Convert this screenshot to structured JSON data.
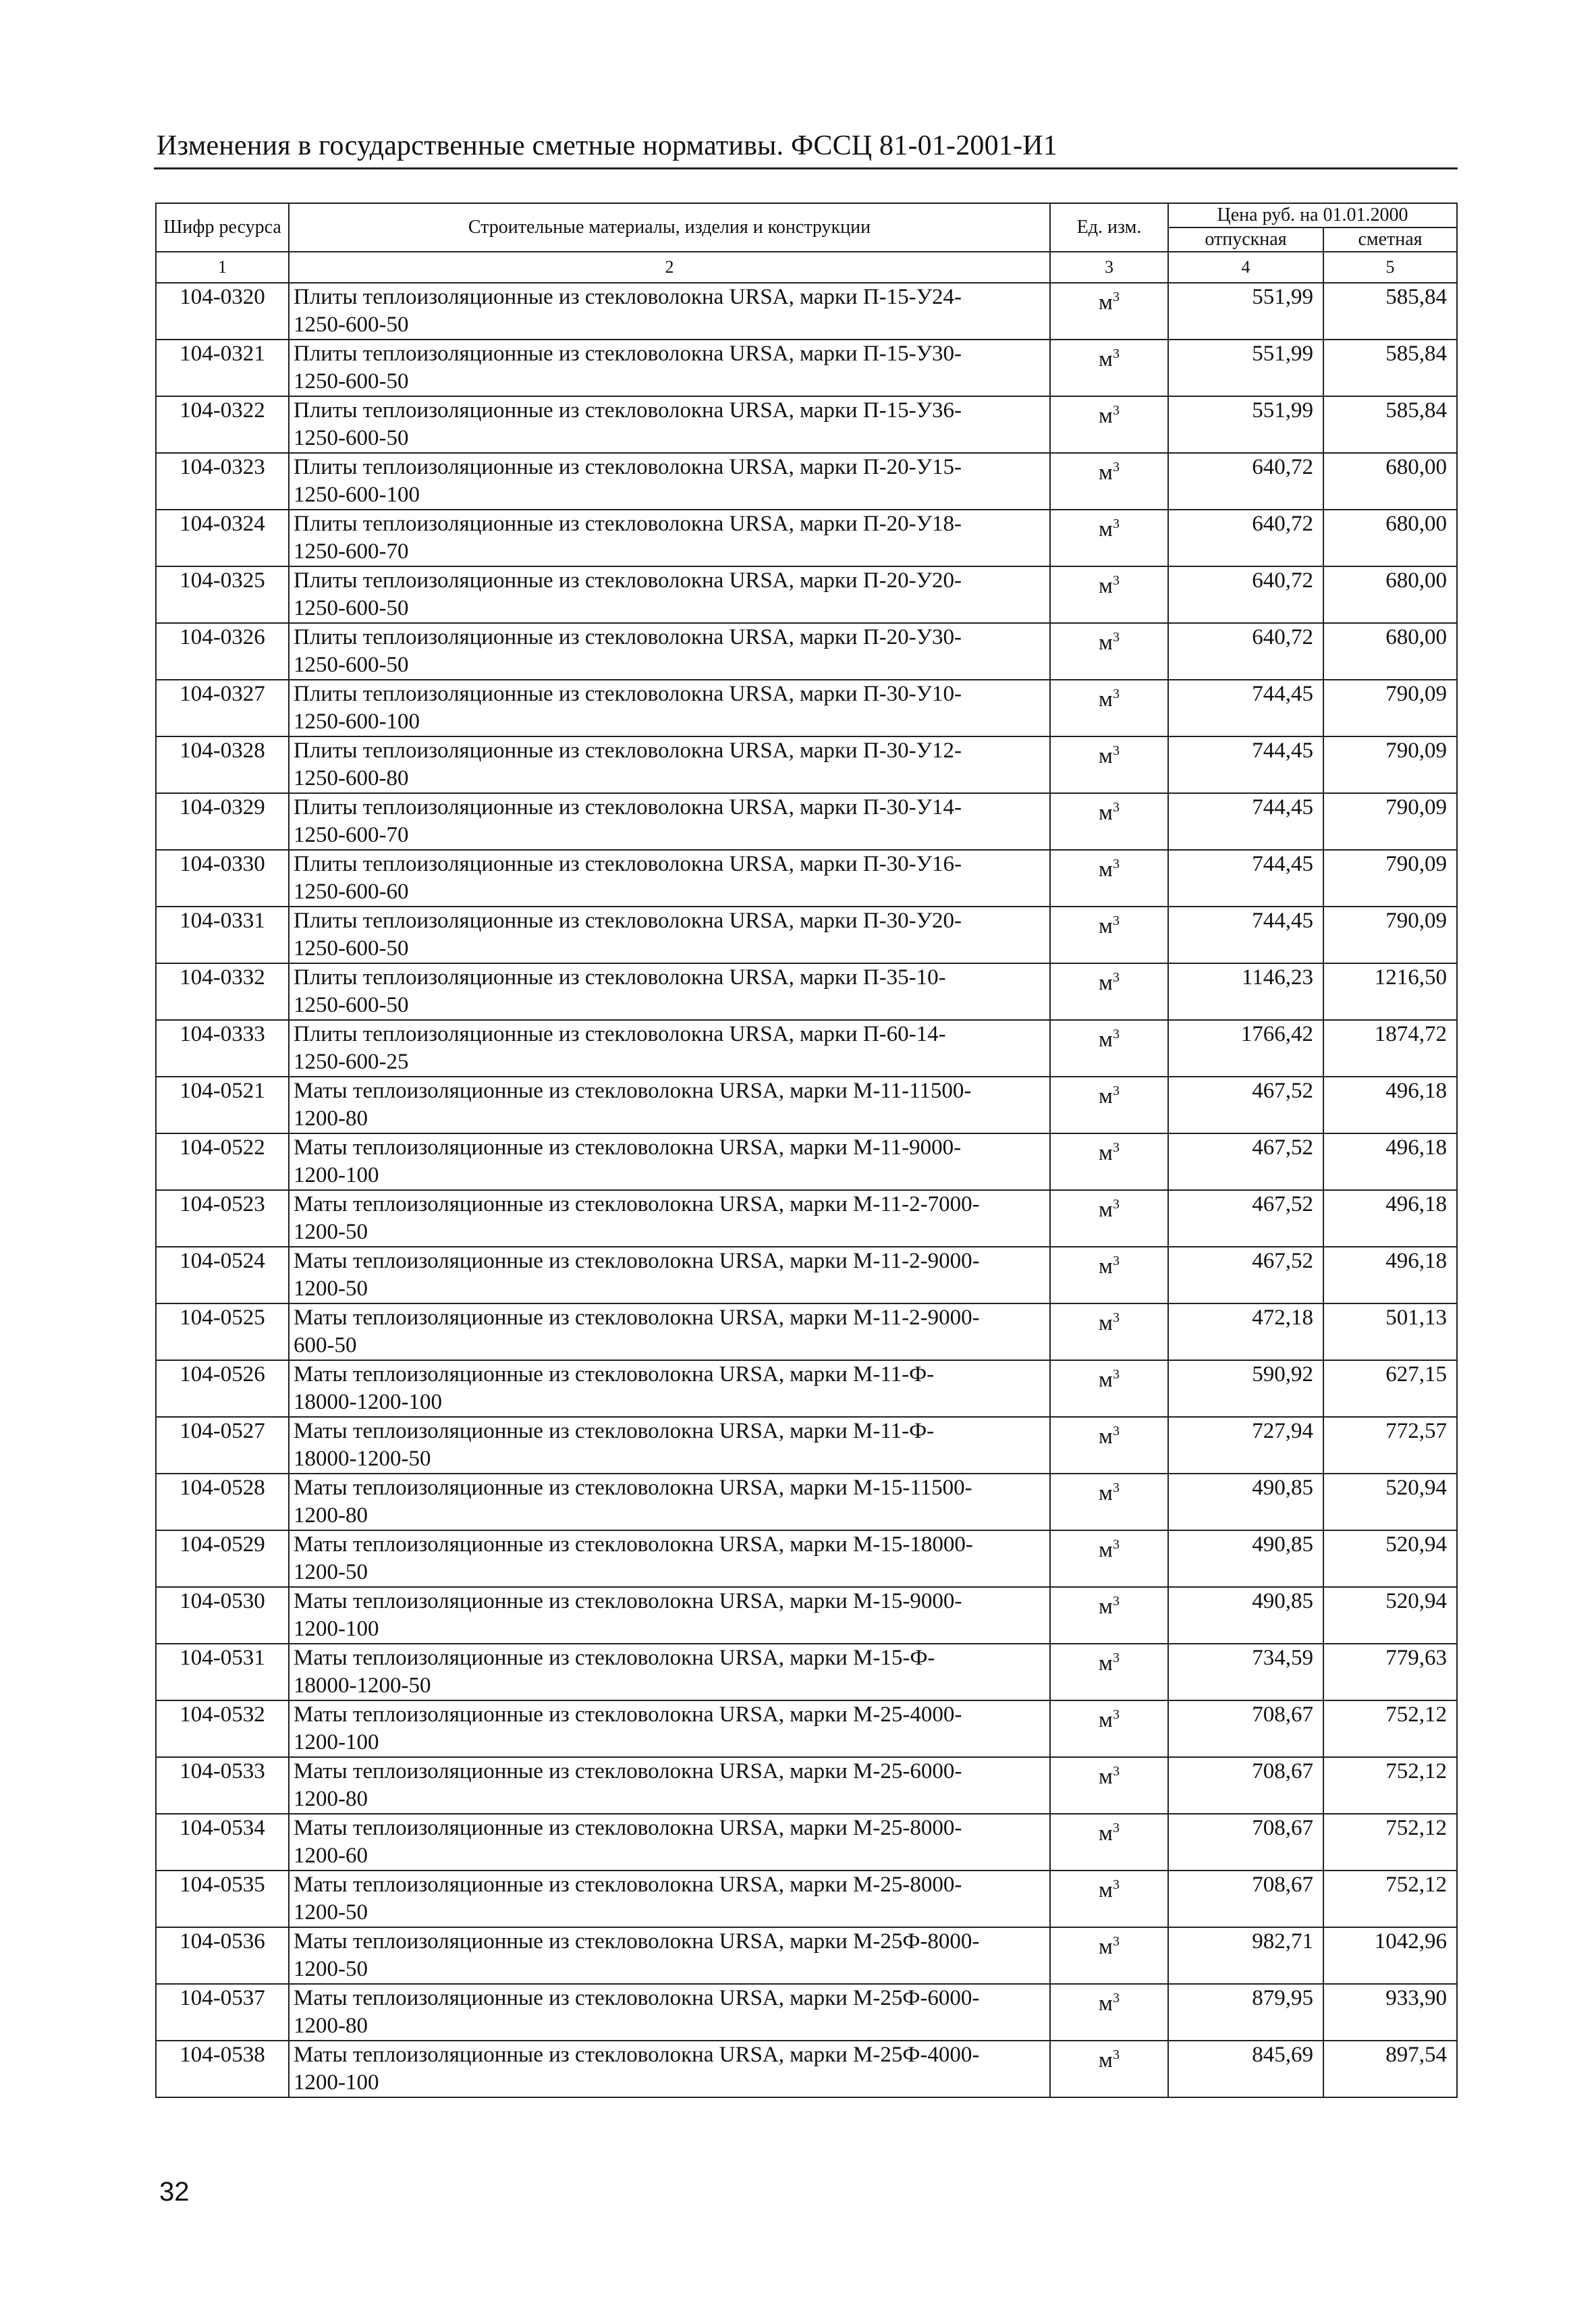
{
  "header": {
    "title": "Изменения в государственные сметные нормативы. ФССЦ 81-01-2001-И1"
  },
  "table": {
    "columns": {
      "code": "Шифр ресурса",
      "name": "Строительные материалы, изделия и конструкции",
      "unit": "Ед. изм.",
      "price_group": "Цена руб. на 01.01.2000",
      "price_release": "отпускная",
      "price_estimate": "сметная"
    },
    "column_numbers": [
      "1",
      "2",
      "3",
      "4",
      "5"
    ],
    "unit_base": "м",
    "unit_exp": "3",
    "rows": [
      {
        "code": "104-0320",
        "name": "Плиты теплоизоляционные из стекловолокна URSA, марки П-15-У24-\n1250-600-50",
        "release": "551,99",
        "estimate": "585,84"
      },
      {
        "code": "104-0321",
        "name": "Плиты теплоизоляционные из стекловолокна URSA, марки П-15-У30-\n1250-600-50",
        "release": "551,99",
        "estimate": "585,84"
      },
      {
        "code": "104-0322",
        "name": "Плиты теплоизоляционные из стекловолокна URSA, марки П-15-У36-\n1250-600-50",
        "release": "551,99",
        "estimate": "585,84"
      },
      {
        "code": "104-0323",
        "name": "Плиты теплоизоляционные из стекловолокна URSA, марки П-20-У15-\n1250-600-100",
        "release": "640,72",
        "estimate": "680,00"
      },
      {
        "code": "104-0324",
        "name": "Плиты теплоизоляционные из стекловолокна URSA, марки П-20-У18-\n1250-600-70",
        "release": "640,72",
        "estimate": "680,00"
      },
      {
        "code": "104-0325",
        "name": "Плиты теплоизоляционные из стекловолокна URSA, марки П-20-У20-\n1250-600-50",
        "release": "640,72",
        "estimate": "680,00"
      },
      {
        "code": "104-0326",
        "name": "Плиты теплоизоляционные из стекловолокна URSA, марки П-20-У30-\n1250-600-50",
        "release": "640,72",
        "estimate": "680,00"
      },
      {
        "code": "104-0327",
        "name": "Плиты теплоизоляционные из стекловолокна URSA, марки П-30-У10-\n1250-600-100",
        "release": "744,45",
        "estimate": "790,09"
      },
      {
        "code": "104-0328",
        "name": "Плиты теплоизоляционные из стекловолокна URSA, марки П-30-У12-\n1250-600-80",
        "release": "744,45",
        "estimate": "790,09"
      },
      {
        "code": "104-0329",
        "name": "Плиты теплоизоляционные из стекловолокна URSA, марки П-30-У14-\n1250-600-70",
        "release": "744,45",
        "estimate": "790,09"
      },
      {
        "code": "104-0330",
        "name": "Плиты теплоизоляционные из стекловолокна URSA, марки П-30-У16-\n1250-600-60",
        "release": "744,45",
        "estimate": "790,09"
      },
      {
        "code": "104-0331",
        "name": "Плиты теплоизоляционные из стекловолокна URSA, марки П-30-У20-\n1250-600-50",
        "release": "744,45",
        "estimate": "790,09"
      },
      {
        "code": "104-0332",
        "name": "Плиты теплоизоляционные из стекловолокна URSA, марки П-35-10-\n1250-600-50",
        "release": "1146,23",
        "estimate": "1216,50"
      },
      {
        "code": "104-0333",
        "name": "Плиты теплоизоляционные из стекловолокна URSA, марки П-60-14-\n1250-600-25",
        "release": "1766,42",
        "estimate": "1874,72"
      },
      {
        "code": "104-0521",
        "name": "Маты теплоизоляционные из стекловолокна URSA, марки М-11-11500-\n1200-80",
        "release": "467,52",
        "estimate": "496,18"
      },
      {
        "code": "104-0522",
        "name": "Маты теплоизоляционные из стекловолокна URSA, марки М-11-9000-\n1200-100",
        "release": "467,52",
        "estimate": "496,18"
      },
      {
        "code": "104-0523",
        "name": "Маты теплоизоляционные из стекловолокна URSA, марки М-11-2-7000-\n1200-50",
        "release": "467,52",
        "estimate": "496,18"
      },
      {
        "code": "104-0524",
        "name": "Маты теплоизоляционные из стекловолокна URSA, марки М-11-2-9000-\n1200-50",
        "release": "467,52",
        "estimate": "496,18"
      },
      {
        "code": "104-0525",
        "name": "Маты теплоизоляционные из стекловолокна URSA, марки М-11-2-9000-\n600-50",
        "release": "472,18",
        "estimate": "501,13"
      },
      {
        "code": "104-0526",
        "name": "Маты теплоизоляционные из стекловолокна URSA, марки М-11-Ф-\n18000-1200-100",
        "release": "590,92",
        "estimate": "627,15"
      },
      {
        "code": "104-0527",
        "name": "Маты теплоизоляционные из стекловолокна URSA, марки М-11-Ф-\n18000-1200-50",
        "release": "727,94",
        "estimate": "772,57"
      },
      {
        "code": "104-0528",
        "name": "Маты теплоизоляционные из стекловолокна URSA, марки М-15-11500-\n1200-80",
        "release": "490,85",
        "estimate": "520,94"
      },
      {
        "code": "104-0529",
        "name": "Маты теплоизоляционные из стекловолокна URSA, марки М-15-18000-\n1200-50",
        "release": "490,85",
        "estimate": "520,94"
      },
      {
        "code": "104-0530",
        "name": "Маты теплоизоляционные из стекловолокна URSA, марки М-15-9000-\n1200-100",
        "release": "490,85",
        "estimate": "520,94"
      },
      {
        "code": "104-0531",
        "name": "Маты теплоизоляционные из стекловолокна URSA, марки М-15-Ф-\n18000-1200-50",
        "release": "734,59",
        "estimate": "779,63"
      },
      {
        "code": "104-0532",
        "name": "Маты теплоизоляционные из стекловолокна URSA, марки М-25-4000-\n1200-100",
        "release": "708,67",
        "estimate": "752,12"
      },
      {
        "code": "104-0533",
        "name": "Маты теплоизоляционные из стекловолокна URSA, марки М-25-6000-\n1200-80",
        "release": "708,67",
        "estimate": "752,12"
      },
      {
        "code": "104-0534",
        "name": "Маты теплоизоляционные из стекловолокна URSA, марки М-25-8000-\n1200-60",
        "release": "708,67",
        "estimate": "752,12"
      },
      {
        "code": "104-0535",
        "name": "Маты теплоизоляционные из стекловолокна URSA, марки М-25-8000-\n1200-50",
        "release": "708,67",
        "estimate": "752,12"
      },
      {
        "code": "104-0536",
        "name": "Маты теплоизоляционные из стекловолокна URSA, марки М-25Ф-8000-\n1200-50",
        "release": "982,71",
        "estimate": "1042,96"
      },
      {
        "code": "104-0537",
        "name": "Маты теплоизоляционные из стекловолокна URSA, марки М-25Ф-6000-\n1200-80",
        "release": "879,95",
        "estimate": "933,90"
      },
      {
        "code": "104-0538",
        "name": "Маты теплоизоляционные из стекловолокна URSA, марки М-25Ф-4000-\n1200-100",
        "release": "845,69",
        "estimate": "897,54"
      }
    ]
  },
  "footer": {
    "page_number": "32"
  }
}
